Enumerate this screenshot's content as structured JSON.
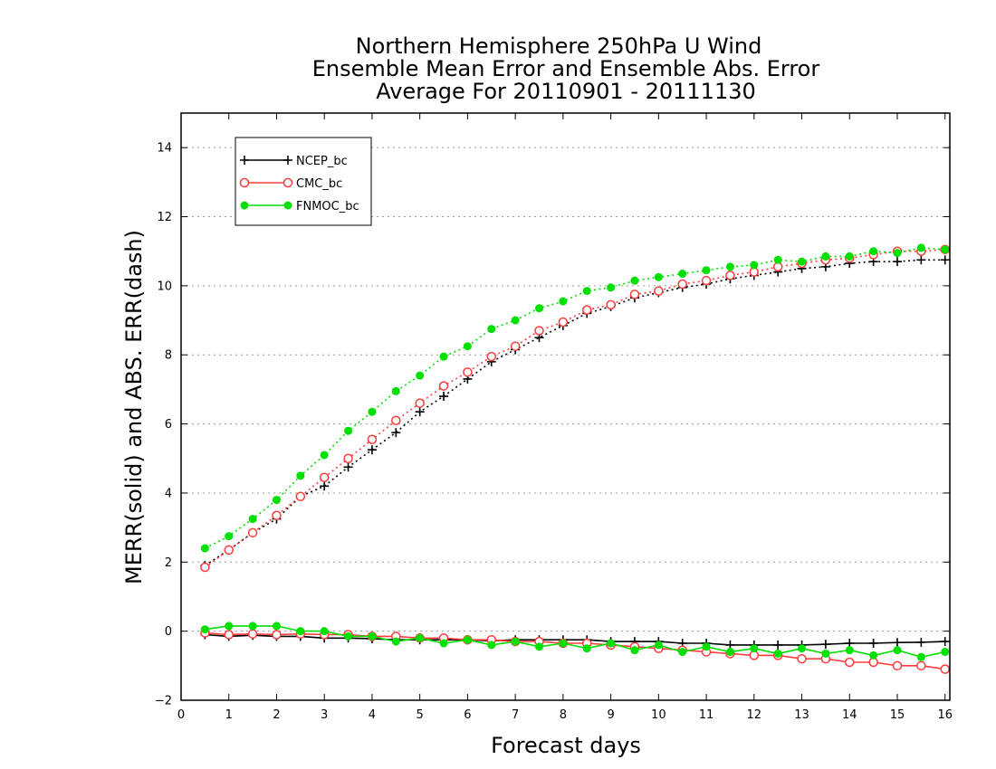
{
  "chart_data": {
    "type": "line",
    "title_lines": [
      "Northern Hemisphere 250hPa U Wind",
      "Ensemble Mean Error and Ensemble Abs. Error",
      "Average For 20110901 - 20111130"
    ],
    "xlabel": "Forecast days",
    "ylabel": "MERR(solid) and ABS. ERR(dash)",
    "xlim": [
      0,
      16.1
    ],
    "ylim": [
      -2,
      15
    ],
    "xticks": [
      0,
      1,
      2,
      3,
      4,
      5,
      6,
      7,
      8,
      9,
      10,
      11,
      12,
      13,
      14,
      15,
      16
    ],
    "yticks": [
      -2,
      0,
      2,
      4,
      6,
      8,
      10,
      12,
      14
    ],
    "ytick_labels": [
      "−2",
      "0",
      "2",
      "4",
      "6",
      "8",
      "10",
      "12",
      "14"
    ],
    "grid": "horizontal dotted",
    "legend_position": "top-left",
    "x": [
      0.5,
      1.0,
      1.5,
      2.0,
      2.5,
      3.0,
      3.5,
      4.0,
      4.5,
      5.0,
      5.5,
      6.0,
      6.5,
      7.0,
      7.5,
      8.0,
      8.5,
      9.0,
      9.5,
      10.0,
      10.5,
      11.0,
      11.5,
      12.0,
      12.5,
      13.0,
      13.5,
      14.0,
      14.5,
      15.0,
      15.5,
      16.0
    ],
    "series": [
      {
        "name": "NCEP_bc",
        "color": "#000000",
        "marker": "plus",
        "abs_err": [
          1.9,
          2.35,
          2.85,
          3.25,
          3.9,
          4.2,
          4.75,
          5.25,
          5.75,
          6.35,
          6.8,
          7.3,
          7.8,
          8.15,
          8.5,
          8.85,
          9.2,
          9.4,
          9.65,
          9.8,
          9.95,
          10.05,
          10.2,
          10.3,
          10.4,
          10.5,
          10.55,
          10.65,
          10.7,
          10.7,
          10.75,
          10.75
        ],
        "mean_err": [
          -0.1,
          -0.15,
          -0.12,
          -0.15,
          -0.15,
          -0.2,
          -0.2,
          -0.22,
          -0.25,
          -0.25,
          -0.25,
          -0.25,
          -0.28,
          -0.25,
          -0.25,
          -0.25,
          -0.25,
          -0.3,
          -0.3,
          -0.3,
          -0.35,
          -0.35,
          -0.4,
          -0.4,
          -0.4,
          -0.4,
          -0.38,
          -0.35,
          -0.35,
          -0.33,
          -0.32,
          -0.3
        ]
      },
      {
        "name": "CMC_bc",
        "color": "#ff3b3b",
        "marker": "circle-open",
        "abs_err": [
          1.85,
          2.35,
          2.85,
          3.35,
          3.9,
          4.45,
          5.0,
          5.55,
          6.1,
          6.6,
          7.1,
          7.5,
          7.95,
          8.25,
          8.7,
          8.95,
          9.3,
          9.45,
          9.75,
          9.85,
          10.05,
          10.15,
          10.3,
          10.4,
          10.55,
          10.65,
          10.75,
          10.8,
          10.9,
          11.0,
          11.0,
          11.05
        ],
        "mean_err": [
          -0.05,
          -0.1,
          -0.08,
          -0.1,
          -0.08,
          -0.1,
          -0.1,
          -0.15,
          -0.15,
          -0.2,
          -0.2,
          -0.25,
          -0.25,
          -0.3,
          -0.3,
          -0.35,
          -0.35,
          -0.4,
          -0.45,
          -0.5,
          -0.55,
          -0.6,
          -0.65,
          -0.7,
          -0.7,
          -0.8,
          -0.8,
          -0.9,
          -0.9,
          -1.0,
          -1.0,
          -1.1
        ]
      },
      {
        "name": "FNMOC_bc",
        "color": "#00e000",
        "marker": "circle-filled",
        "abs_err": [
          2.4,
          2.75,
          3.25,
          3.8,
          4.5,
          5.1,
          5.8,
          6.35,
          6.95,
          7.4,
          7.95,
          8.25,
          8.75,
          9.0,
          9.35,
          9.55,
          9.85,
          9.95,
          10.15,
          10.25,
          10.35,
          10.45,
          10.55,
          10.6,
          10.75,
          10.7,
          10.85,
          10.85,
          11.0,
          10.95,
          11.1,
          11.05
        ],
        "mean_err": [
          0.05,
          0.15,
          0.15,
          0.15,
          0.0,
          0.0,
          -0.15,
          -0.15,
          -0.3,
          -0.2,
          -0.35,
          -0.25,
          -0.4,
          -0.3,
          -0.45,
          -0.35,
          -0.5,
          -0.35,
          -0.55,
          -0.4,
          -0.6,
          -0.45,
          -0.6,
          -0.5,
          -0.65,
          -0.5,
          -0.65,
          -0.55,
          -0.7,
          -0.55,
          -0.75,
          -0.6
        ]
      }
    ]
  }
}
